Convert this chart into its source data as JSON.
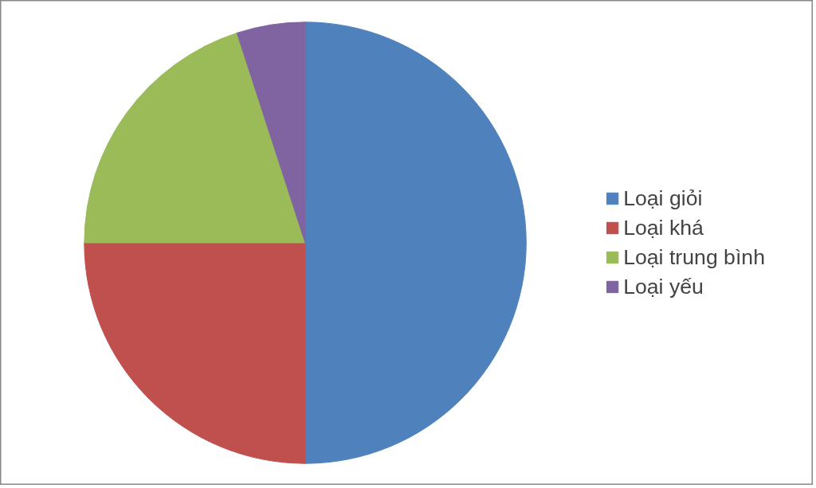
{
  "chart_data": {
    "type": "pie",
    "categories": [
      "Loại giỏi",
      "Loại khá",
      "Loại trung bình",
      "Loại yếu"
    ],
    "values": [
      50,
      25,
      20,
      5
    ],
    "colors": [
      "#4f81bd",
      "#c0504d",
      "#9bbb59",
      "#8064a2"
    ],
    "legend": "right"
  }
}
